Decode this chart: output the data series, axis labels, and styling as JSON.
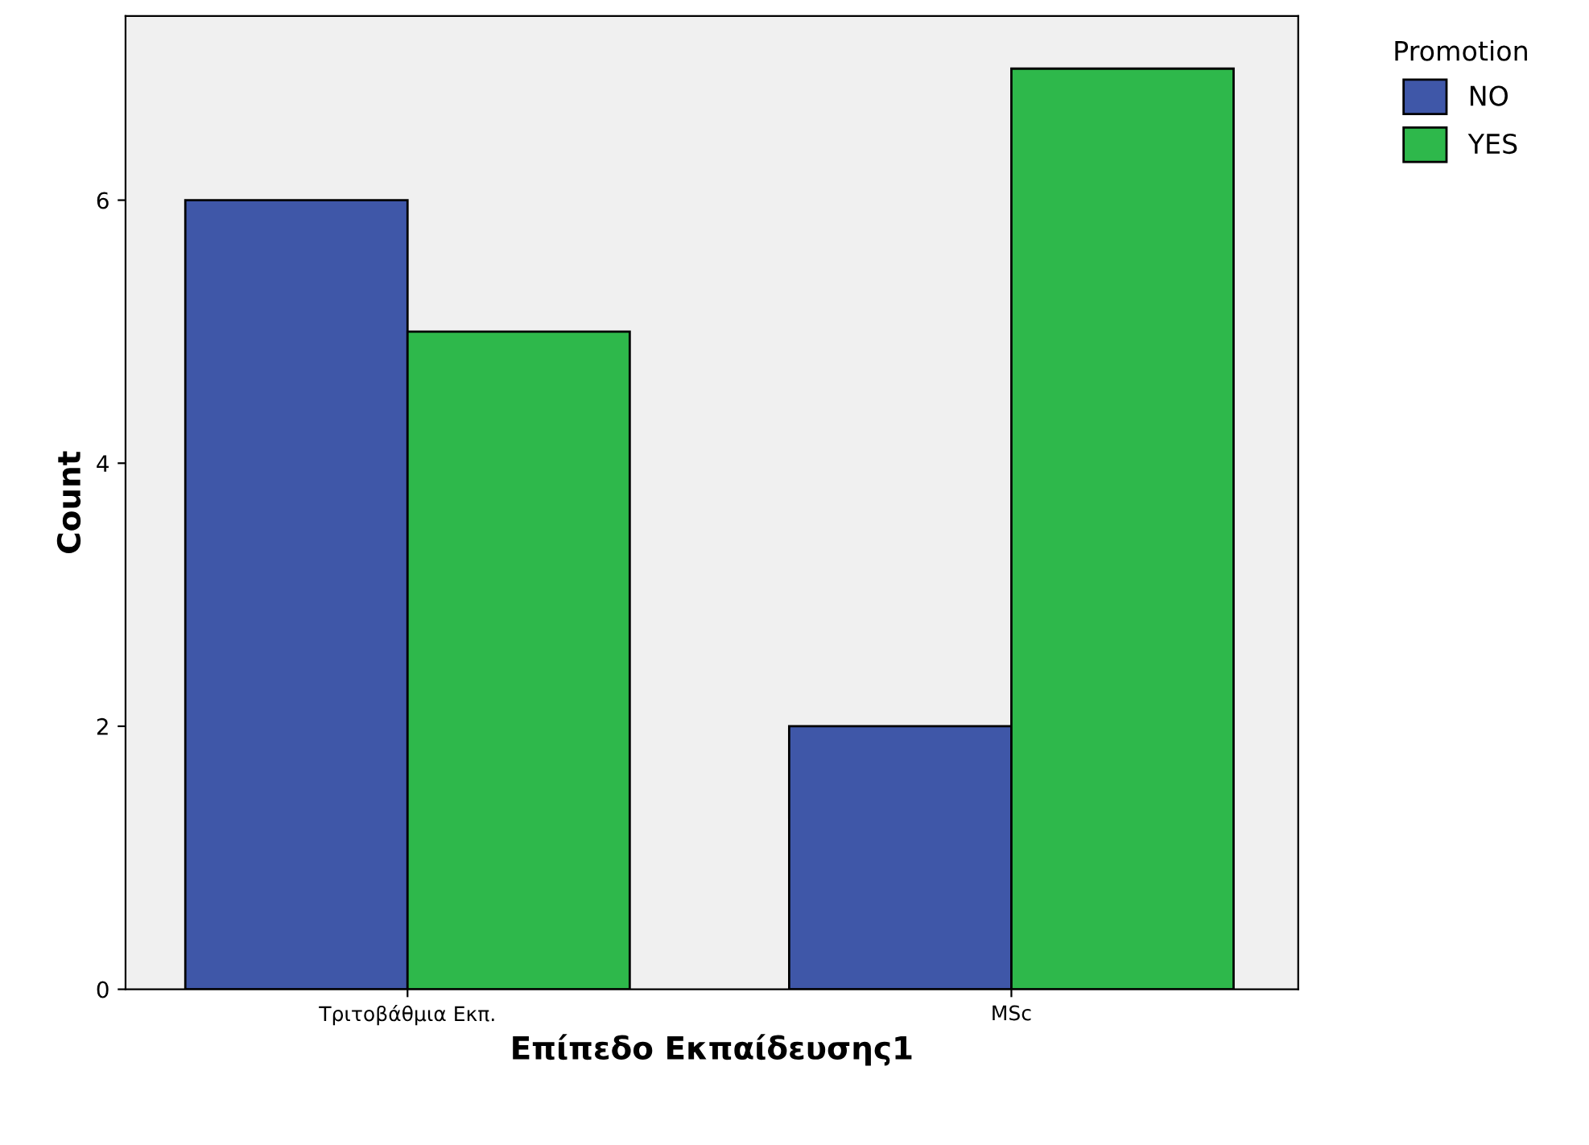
{
  "chart_data": {
    "type": "bar",
    "xlabel": "Επίπεδο Εκπαίδευσης1",
    "ylabel": "Count",
    "legend_title": "Promotion",
    "categories": [
      "Τριτοβάθμια Εκπ.",
      "MSc"
    ],
    "series": [
      {
        "name": "NO",
        "color": "#3f57a8",
        "values": [
          6,
          2
        ]
      },
      {
        "name": "YES",
        "color": "#2eb84b",
        "values": [
          5,
          7
        ]
      }
    ],
    "ylim": [
      0,
      7.4
    ],
    "yticks": [
      0,
      2,
      4,
      6
    ],
    "grid": false,
    "legend": "top right"
  }
}
